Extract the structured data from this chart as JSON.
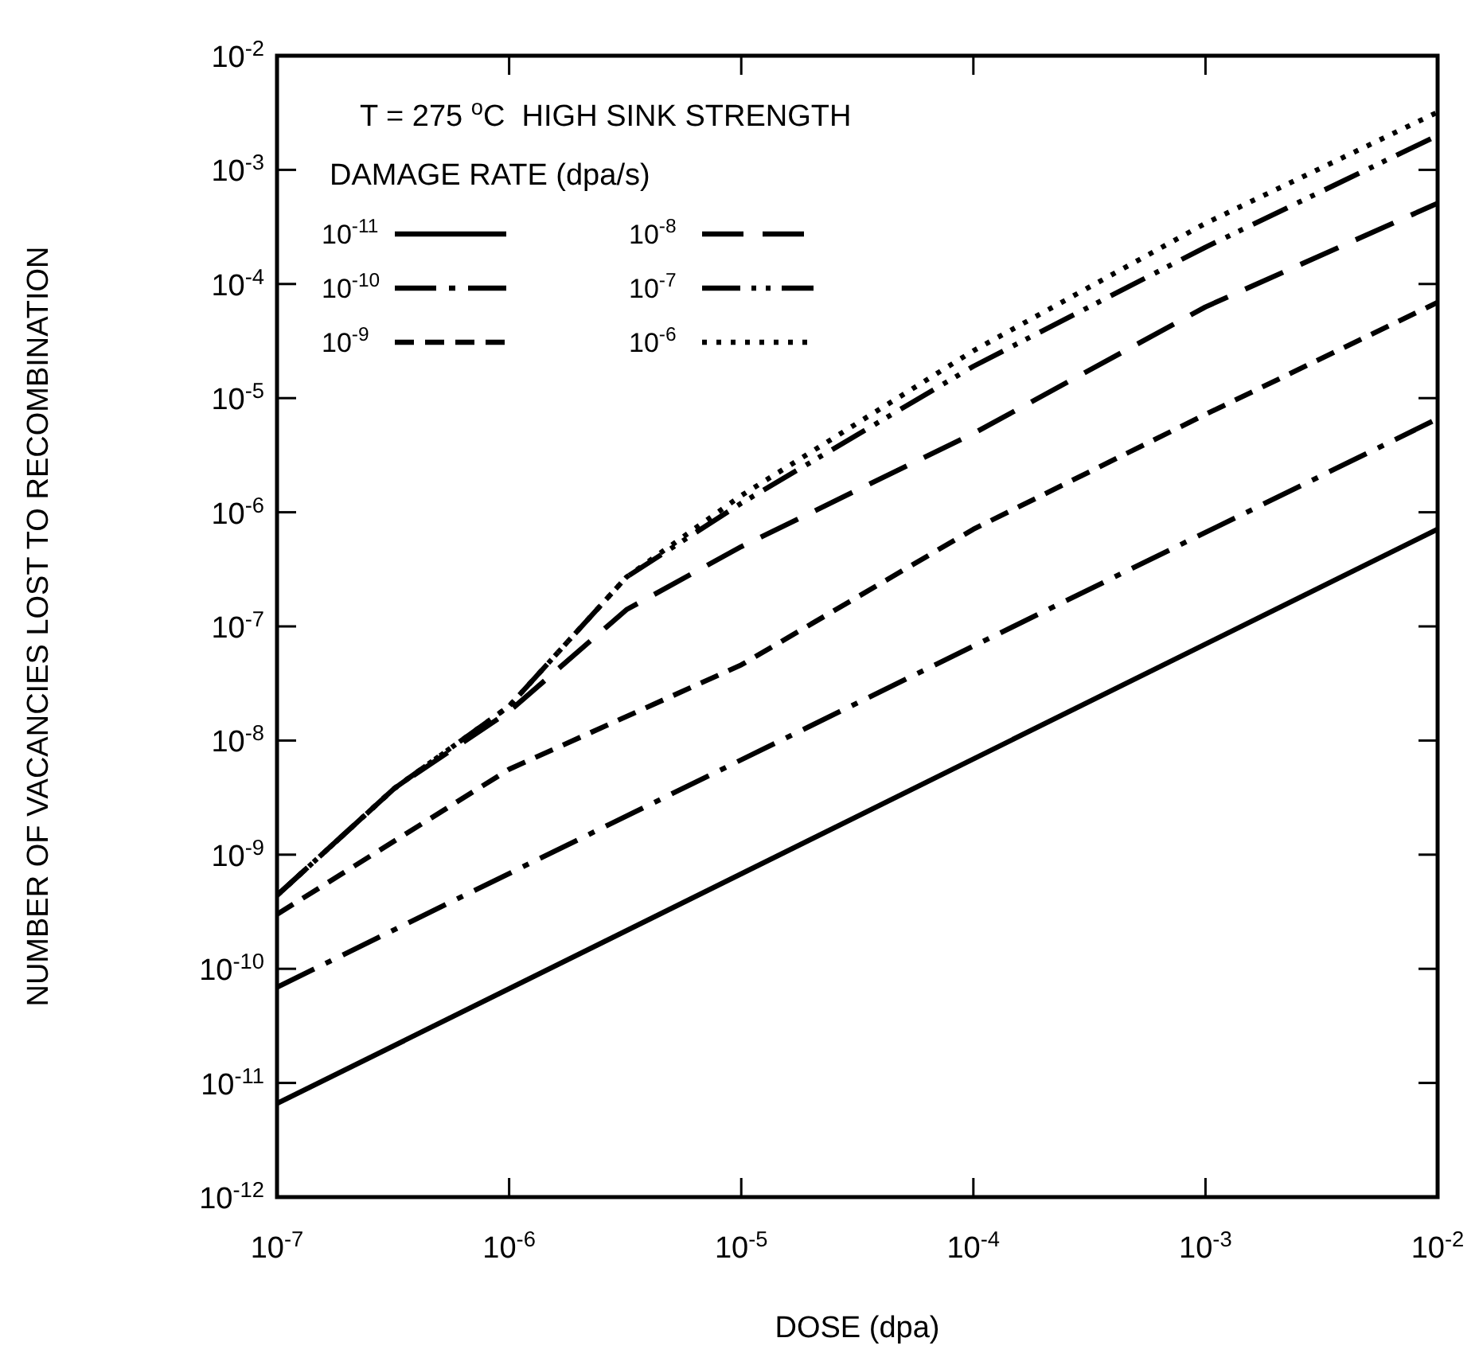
{
  "chart_data": {
    "type": "line",
    "title": "T = 275 $^{o}$C  HIGH SINK STRENGTH",
    "legend_title": "DAMAGE RATE (dpa/s)",
    "xlabel": "DOSE (dpa)",
    "ylabel": "NUMBER OF VACANCIES LOST TO RECOMBINATION",
    "log": "xy",
    "grid": false,
    "legend": "top left",
    "xlim": [
      1e-07,
      0.01
    ],
    "ylim": [
      1e-12,
      0.01
    ],
    "xticks": [
      {
        "value": 1e-07,
        "label": "10$^{-7}$"
      },
      {
        "value": 1e-06,
        "label": "10$^{-6}$"
      },
      {
        "value": 1e-05,
        "label": "10$^{-5}$"
      },
      {
        "value": 0.0001,
        "label": "10$^{-4}$"
      },
      {
        "value": 0.001,
        "label": "10$^{-3}$"
      },
      {
        "value": 0.01,
        "label": "10$^{-2}$"
      }
    ],
    "yticks": [
      {
        "value": 1e-12,
        "label": "10$^{-12}$"
      },
      {
        "value": 1e-11,
        "label": "10$^{-11}$"
      },
      {
        "value": 1e-10,
        "label": "10$^{-10}$"
      },
      {
        "value": 1e-09,
        "label": "10$^{-9}$"
      },
      {
        "value": 1e-08,
        "label": "10$^{-8}$"
      },
      {
        "value": 1e-07,
        "label": "10$^{-7}$"
      },
      {
        "value": 1e-06,
        "label": "10$^{-6}$"
      },
      {
        "value": 1e-05,
        "label": "10$^{-5}$"
      },
      {
        "value": 0.0001,
        "label": "10$^{-4}$"
      },
      {
        "value": 0.001,
        "label": "10$^{-3}$"
      },
      {
        "value": 0.01,
        "label": "10$^{-2}$"
      }
    ],
    "series": [
      {
        "name": "10$^{-11}$",
        "color": "#000000",
        "line_style": "solid",
        "x": [
          1e-07,
          0.01
        ],
        "values": [
          6.6e-12,
          7.1e-07
        ]
      },
      {
        "name": "10$^{-10}$",
        "color": "#000000",
        "line_style": "dashdot",
        "x": [
          1e-07,
          0.01
        ],
        "values": [
          6.9e-11,
          6.6e-06
        ]
      },
      {
        "name": "10$^{-9}$",
        "color": "#000000",
        "line_style": "dashed",
        "x": [
          1e-07,
          1e-06,
          1e-05,
          0.0001,
          0.001,
          0.01
        ],
        "values": [
          3e-10,
          5.6e-09,
          4.6e-08,
          7.1e-07,
          7.2e-06,
          6.9e-05
        ]
      },
      {
        "name": "10$^{-8}$",
        "color": "#000000",
        "line_style": "longdash",
        "x": [
          1e-07,
          3.2e-07,
          1e-06,
          3.2e-06,
          1e-05,
          0.0001,
          0.001,
          0.01
        ],
        "values": [
          4.4e-10,
          3.8e-09,
          1.8e-08,
          1.4e-07,
          5e-07,
          4.9e-06,
          6.3e-05,
          0.00051
        ]
      },
      {
        "name": "10$^{-7}$",
        "color": "#000000",
        "line_style": "dashdotdot",
        "x": [
          1e-07,
          3.2e-07,
          1e-06,
          3.2e-06,
          1e-05,
          0.0001,
          0.001,
          0.01
        ],
        "values": [
          4.4e-10,
          3.8e-09,
          2e-08,
          2.7e-07,
          1.2e-06,
          1.9e-05,
          0.00021,
          0.002
        ]
      },
      {
        "name": "10$^{-6}$",
        "color": "#000000",
        "line_style": "dotted",
        "x": [
          1e-07,
          3.2e-07,
          1e-06,
          3.2e-06,
          1e-05,
          0.0001,
          0.001,
          0.01
        ],
        "values": [
          4.4e-10,
          3.8e-09,
          2e-08,
          2.7e-07,
          1.4e-06,
          2.6e-05,
          0.00034,
          0.0032
        ]
      }
    ]
  }
}
